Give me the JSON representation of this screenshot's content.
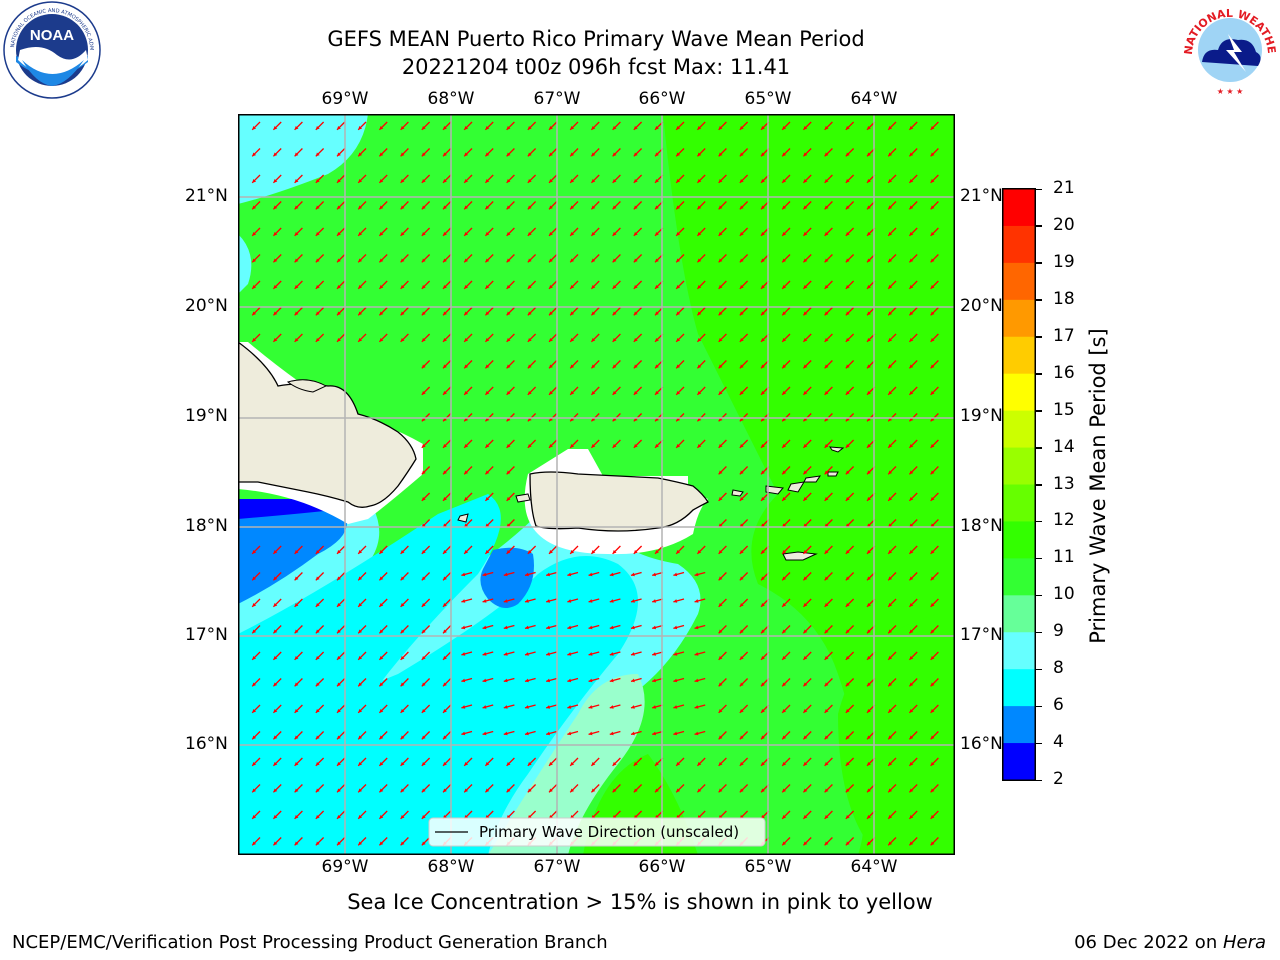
{
  "title": {
    "line1": "GEFS MEAN Puerto Rico Primary Wave Mean Period",
    "line2": "20221204 t00z 096h fcst   Max: 11.41"
  },
  "logos": {
    "left": {
      "name": "noaa-logo",
      "text": "NOAA",
      "ring_text": "NATIONAL OCEANIC AND ATMOSPHERIC ADMINISTRATION · U.S. DEPARTMENT OF COMMERCE"
    },
    "right": {
      "name": "nws-logo",
      "ring_text": "NATIONAL WEATHER SERVICE"
    }
  },
  "map": {
    "lon_labels": [
      "69°W",
      "68°W",
      "67°W",
      "66°W",
      "65°W",
      "64°W"
    ],
    "lat_labels": [
      "21°N",
      "20°N",
      "19°N",
      "18°N",
      "17°N",
      "16°N"
    ],
    "legend_label": "Primary Wave Direction (unscaled)",
    "land_color": "#eeecdc",
    "arrow_color": "#ff0000",
    "grid_color": "#b4b4b4"
  },
  "colorbar": {
    "label": "Primary Wave Mean Period [s]",
    "ticks": [
      "21",
      "20",
      "19",
      "18",
      "17",
      "16",
      "15",
      "14",
      "13",
      "12",
      "11",
      "10",
      "9",
      "8",
      "6",
      "4",
      "2"
    ],
    "colors": [
      "#ff0000",
      "#ff3300",
      "#ff6600",
      "#ff9900",
      "#ffcc00",
      "#ffff00",
      "#ccff00",
      "#99ff00",
      "#66ff00",
      "#33ff00",
      "#33ff33",
      "#66ff99",
      "#66ffff",
      "#00ffff",
      "#0088ff",
      "#0000ff"
    ]
  },
  "note": "Sea Ice Concentration > 15% is shown in pink to yellow",
  "footer": {
    "left": "NCEP/EMC/Verification Post Processing Product Generation Branch",
    "date": "06 Dec 2022 on ",
    "machine": "Hera"
  }
}
